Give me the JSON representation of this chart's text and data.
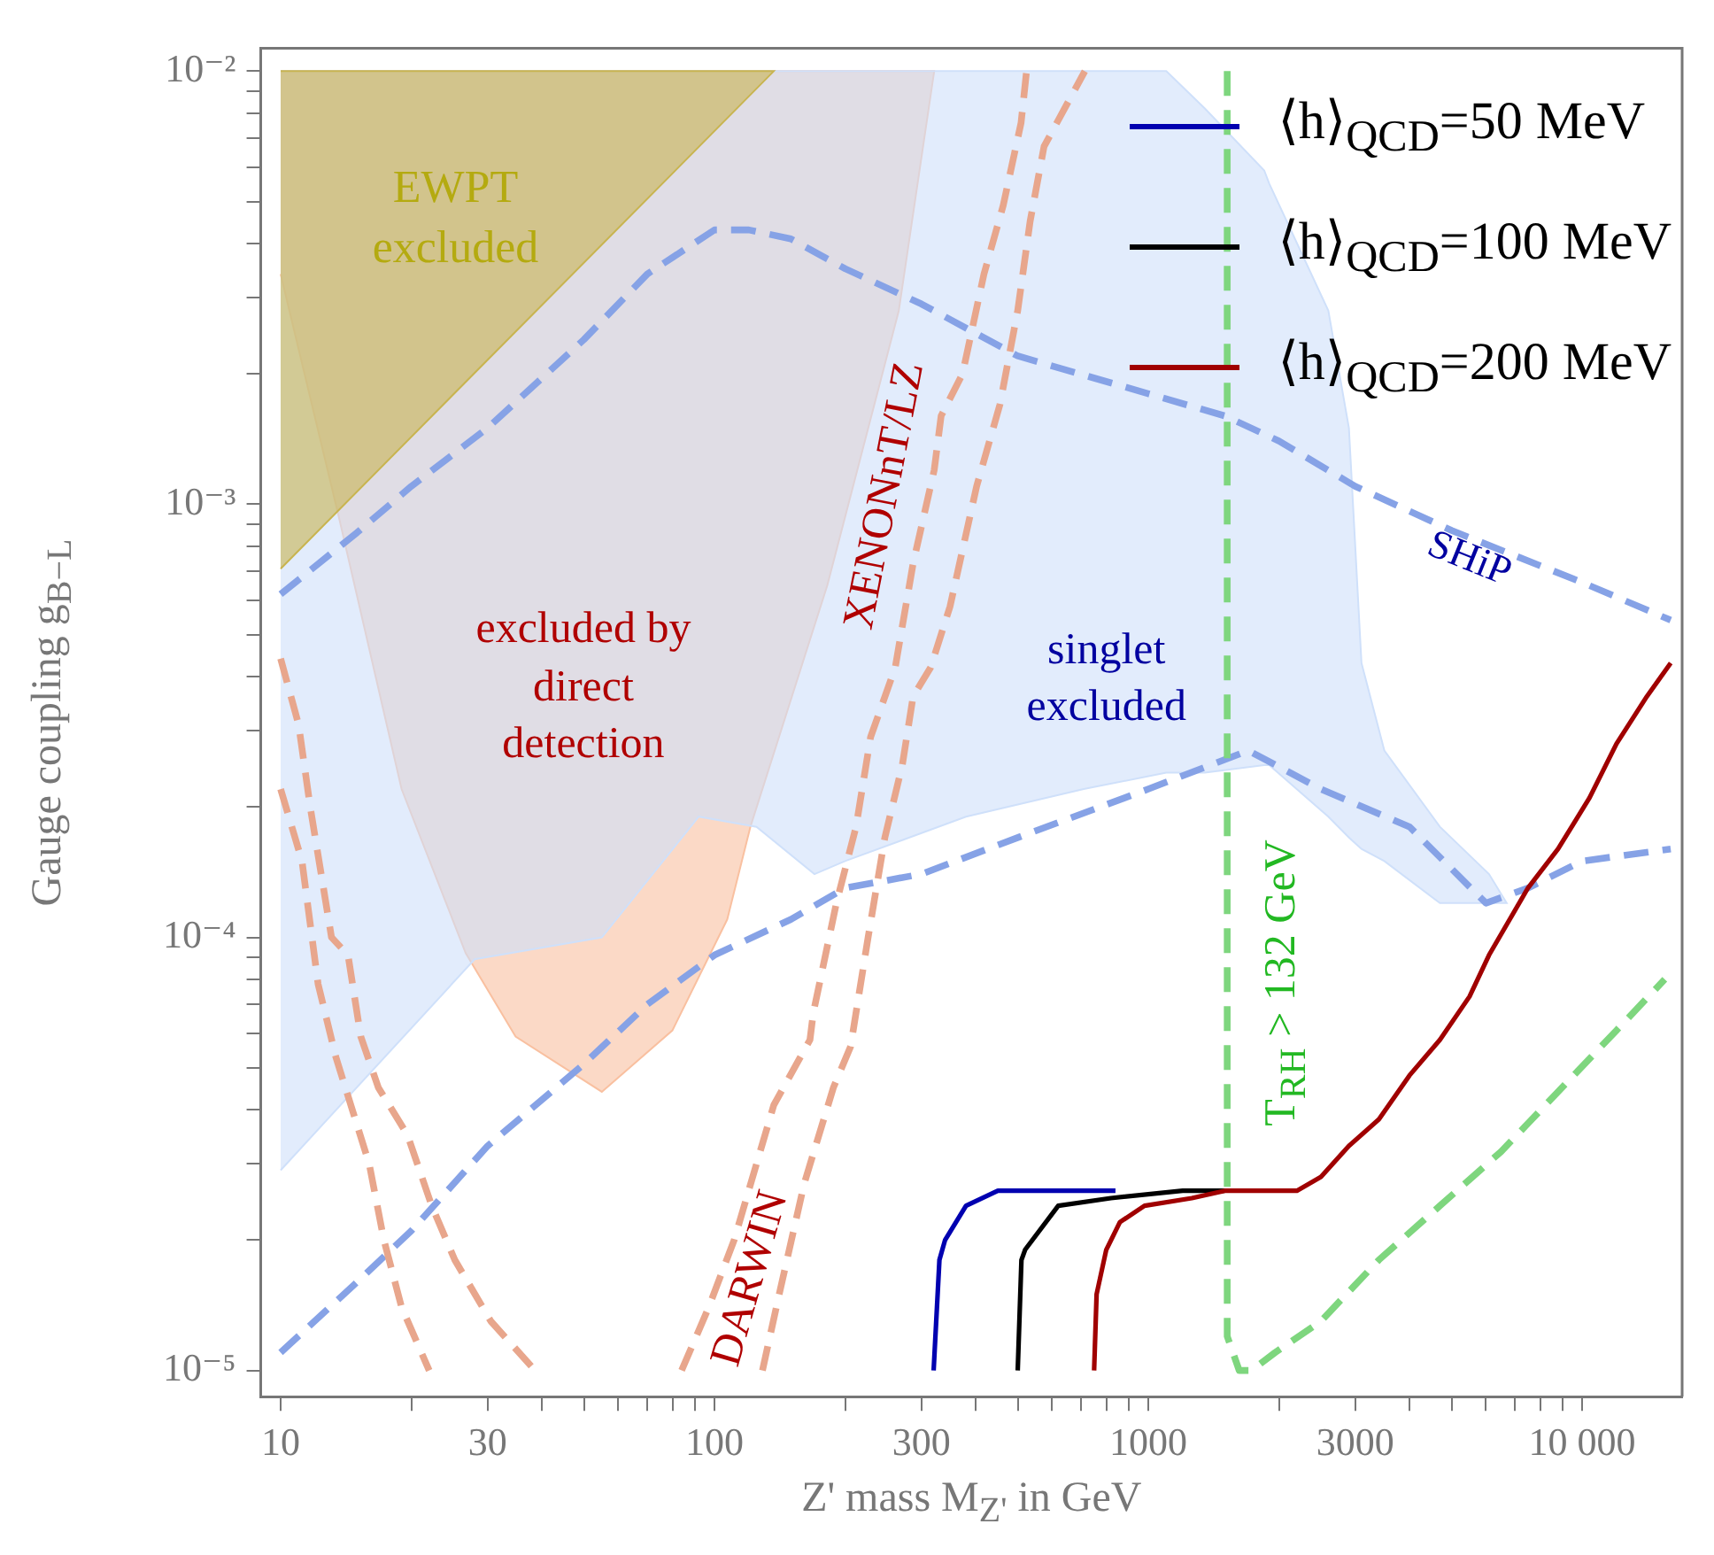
{
  "chart_data": {
    "type": "line",
    "xlabel": "Z' mass M$_{Z'}$ in GeV",
    "ylabel": "Gauge coupling g$_{B−L}$",
    "log": "xy",
    "xlim": [
      9,
      17000
    ],
    "ylim": [
      8.7e-06,
      0.0113
    ],
    "xticks": [
      10,
      {
        "value": 20,
        "label": null
      },
      30,
      {
        "value": 40,
        "label": null
      },
      {
        "value": 50,
        "label": null
      },
      {
        "value": 60,
        "label": null
      },
      {
        "value": 70,
        "label": null
      },
      {
        "value": 80,
        "label": null
      },
      {
        "value": 90,
        "label": null
      },
      100,
      {
        "value": 200,
        "label": null
      },
      300,
      {
        "value": 400,
        "label": null
      },
      {
        "value": 500,
        "label": null
      },
      {
        "value": 600,
        "label": null
      },
      {
        "value": 700,
        "label": null
      },
      {
        "value": 800,
        "label": null
      },
      {
        "value": 900,
        "label": null
      },
      1000,
      {
        "value": 2000,
        "label": null
      },
      3000,
      {
        "value": 4000,
        "label": null
      },
      {
        "value": 5000,
        "label": null
      },
      {
        "value": 6000,
        "label": null
      },
      {
        "value": 7000,
        "label": null
      },
      {
        "value": 8000,
        "label": null
      },
      {
        "value": 9000,
        "label": null
      },
      {
        "value": 10000,
        "label": "10 000"
      }
    ],
    "yticks": [
      {
        "value": 1e-05,
        "label": "10⁻⁵"
      },
      {
        "value": 2e-05,
        "label": null
      },
      {
        "value": 3e-05,
        "label": null
      },
      {
        "value": 4e-05,
        "label": null
      },
      {
        "value": 5e-05,
        "label": null
      },
      {
        "value": 6e-05,
        "label": null
      },
      {
        "value": 7e-05,
        "label": null
      },
      {
        "value": 8e-05,
        "label": null
      },
      {
        "value": 9e-05,
        "label": null
      },
      {
        "value": 0.0001,
        "label": "10⁻⁴"
      },
      {
        "value": 0.0002,
        "label": null
      },
      {
        "value": 0.0003,
        "label": null
      },
      {
        "value": 0.0004,
        "label": null
      },
      {
        "value": 0.0005,
        "label": null
      },
      {
        "value": 0.0006,
        "label": null
      },
      {
        "value": 0.0007,
        "label": null
      },
      {
        "value": 0.0008,
        "label": null
      },
      {
        "value": 0.0009,
        "label": null
      },
      {
        "value": 0.001,
        "label": "10⁻³"
      },
      {
        "value": 0.002,
        "label": null
      },
      {
        "value": 0.003,
        "label": null
      },
      {
        "value": 0.004,
        "label": null
      },
      {
        "value": 0.005,
        "label": null
      },
      {
        "value": 0.006,
        "label": null
      },
      {
        "value": 0.007,
        "label": null
      },
      {
        "value": 0.008,
        "label": null
      },
      {
        "value": 0.009,
        "label": null
      },
      {
        "value": 0.01,
        "label": "10⁻²"
      }
    ],
    "legend": "top right",
    "series": [
      {
        "type": "area",
        "color": "#f9c0a0",
        "x": [
          10,
          321,
          266,
          182,
          121,
          107,
          80,
          55,
          34.8,
          26.7,
          19,
          13.6,
          10
        ],
        "values": [
          0.01,
          0.01,
          0.0028,
          0.00065,
          0.00018,
          0.00011,
          6.1e-05,
          4.4e-05,
          5.9e-05,
          9.2e-05,
          0.00022,
          0.00094,
          0.0034
        ]
      },
      {
        "type": "area",
        "color": "#cfe0fa",
        "x": [
          10,
          1100,
          1350,
          1850,
          1900,
          2600,
          2900,
          3100,
          3500,
          4700,
          6100,
          6700,
          6100,
          4700,
          3500,
          3100,
          2900,
          2600,
          1900,
          1850,
          1350,
          1100,
          710,
          380,
          200,
          170,
          125,
          92,
          55,
          28,
          10
        ],
        "values": [
          0.01,
          0.01,
          0.0082,
          0.0059,
          0.0055,
          0.0028,
          0.0015,
          0.00043,
          0.00027,
          0.00018,
          0.00014,
          0.00012,
          0.00012,
          0.00012,
          0.00015,
          0.00016,
          0.00017,
          0.00019,
          0.00025,
          0.00025,
          0.00024,
          0.00024,
          0.00022,
          0.00019,
          0.00015,
          0.00014,
          0.00018,
          0.00019,
          0.0001,
          8.9e-05,
          2.9e-05
        ]
      },
      {
        "type": "area",
        "color": "#c8b450",
        "x": [
          10,
          137,
          10
        ],
        "values": [
          0.01,
          0.01,
          0.00071
        ]
      },
      {
        "line_style": "dashed",
        "color": "#86a2e6",
        "x": [
          10,
          15,
          20,
          30,
          50,
          70,
          100,
          120,
          150,
          200,
          300,
          500,
          1000,
          1500,
          2000,
          3000,
          5000,
          10000,
          16000
        ],
        "values": [
          0.00062,
          0.00086,
          0.0011,
          0.0015,
          0.0024,
          0.0034,
          0.0043,
          0.0043,
          0.0041,
          0.0035,
          0.0029,
          0.0022,
          0.0018,
          0.0016,
          0.0014,
          0.0011,
          0.00087,
          0.00066,
          0.00054
        ]
      },
      {
        "line_style": "dashed",
        "color": "#86a2e6",
        "x": [
          10,
          15,
          20,
          30,
          50,
          70,
          100,
          150,
          200,
          300,
          500,
          1000,
          1700,
          2500,
          4000,
          6000,
          7500,
          10000,
          16000
        ],
        "values": [
          1.1e-05,
          1.6e-05,
          2.1e-05,
          3.3e-05,
          5.1e-05,
          7e-05,
          9.1e-05,
          0.00011,
          0.00013,
          0.00014,
          0.00017,
          0.00022,
          0.00027,
          0.00022,
          0.00018,
          0.00012,
          0.00013,
          0.00015,
          0.00016
        ]
      },
      {
        "line_style": "dashed",
        "color": "#e8a68c",
        "x": [
          10,
          11.2,
          12.2,
          13.4,
          16,
          17.3,
          19,
          22
        ],
        "values": [
          0.00022,
          0.00015,
          7.8e-05,
          5.3e-05,
          3e-05,
          2e-05,
          1.4e-05,
          1e-05
        ]
      },
      {
        "line_style": "dashed",
        "color": "#e8a68c",
        "x": [
          10,
          11,
          11.7,
          13.1,
          14.3,
          15.3,
          16.8,
          19.6,
          22.3,
          25.2,
          30.5,
          38.6
        ],
        "values": [
          0.00044,
          0.00031,
          0.0002,
          0.0001,
          9.1e-05,
          5.9e-05,
          4.5e-05,
          3.5e-05,
          2.4e-05,
          1.8e-05,
          1.3e-05,
          1e-05
        ]
      },
      {
        "line_style": "dashed",
        "color": "#e8a68c",
        "x": [
          84,
          97,
          111,
          137,
          166,
          169,
          191,
          212,
          229,
          261,
          287,
          321,
          333,
          373,
          418,
          463,
          509,
          524
        ],
        "values": [
          1e-05,
          1.4e-05,
          2e-05,
          4.1e-05,
          5.8e-05,
          6.7e-05,
          0.00012,
          0.00018,
          0.00029,
          0.00042,
          0.00073,
          0.0012,
          0.0016,
          0.002,
          0.0034,
          0.0049,
          0.0076,
          0.01
        ]
      },
      {
        "line_style": "dashed",
        "color": "#e8a68c",
        "x": [
          129,
          141,
          161,
          188,
          206,
          226,
          247,
          271,
          287,
          315,
          349,
          402,
          455,
          500,
          534,
          575,
          714
        ],
        "values": [
          1e-05,
          1.5e-05,
          2.7e-05,
          4.5e-05,
          5.6e-05,
          0.0001,
          0.00017,
          0.00025,
          0.00036,
          0.00042,
          0.00058,
          0.0011,
          0.0017,
          0.0028,
          0.0045,
          0.0067,
          0.01
        ]
      },
      {
        "line_style": "dashed",
        "color": "#7ed67e",
        "x": [
          1520,
          1520,
          1620,
          1730,
          1960,
          2500,
          3400,
          4700,
          6500,
          8800,
          12000,
          15500
        ],
        "values": [
          0.01,
          1.2e-05,
          1e-05,
          1e-05,
          1.1e-05,
          1.3e-05,
          1.8e-05,
          2.4e-05,
          3.2e-05,
          4.4e-05,
          6.1e-05,
          8e-05
        ]
      },
      {
        "line_style": "solid",
        "name": "⟨h⟩$_{QCD}$=50 MeV",
        "color": "#0000b0",
        "x": [
          320,
          330,
          340,
          380,
          450,
          560,
          840
        ],
        "values": [
          1e-05,
          1.8e-05,
          2e-05,
          2.4e-05,
          2.6e-05,
          2.6e-05,
          2.6e-05
        ]
      },
      {
        "line_style": "solid",
        "name": "⟨h⟩$_{QCD}$=100 MeV",
        "color": "#000000",
        "x": [
          500,
          510,
          520,
          620,
          820,
          1200,
          1500
        ],
        "values": [
          1e-05,
          1.8e-05,
          1.9e-05,
          2.4e-05,
          2.5e-05,
          2.6e-05,
          2.6e-05
        ]
      },
      {
        "line_style": "solid",
        "name": "⟨h⟩$_{QCD}$=200 MeV",
        "color": "#a00000",
        "x": [
          750,
          760,
          800,
          860,
          980,
          1260,
          1500,
          2200,
          2500,
          2900,
          3400,
          4000,
          4700,
          5500,
          6100,
          7500,
          8800,
          10400,
          12000,
          14100,
          16000
        ],
        "values": [
          1e-05,
          1.5e-05,
          1.9e-05,
          2.2e-05,
          2.4e-05,
          2.5e-05,
          2.6e-05,
          2.6e-05,
          2.8e-05,
          3.3e-05,
          3.8e-05,
          4.8e-05,
          5.8e-05,
          7.3e-05,
          9.1e-05,
          0.00013,
          0.00016,
          0.00021,
          0.00028,
          0.00036,
          0.00043
        ]
      }
    ],
    "annotations": [
      "EWPT excluded",
      "excluded by direct detection",
      "XENONnT/LZ",
      "DARWIN",
      "singlet excluded",
      "SHiP",
      "T$_{RH}$ > 132 GeV"
    ]
  }
}
